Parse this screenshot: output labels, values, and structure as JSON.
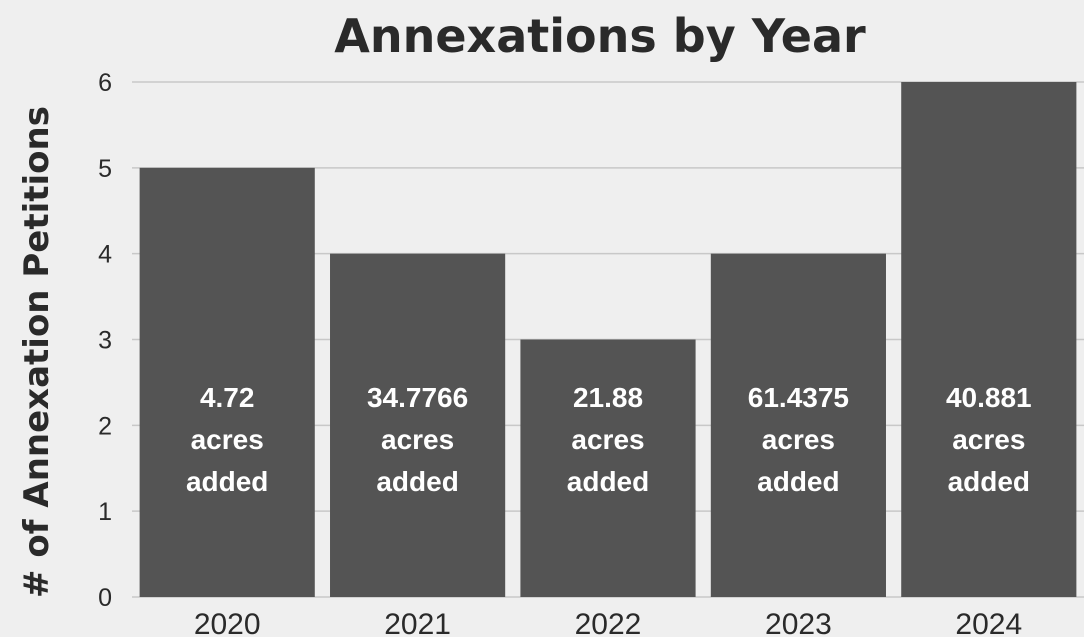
{
  "chart_data": {
    "type": "bar",
    "title": "Annexations by Year",
    "xlabel": "",
    "ylabel": "# of Annexation Petitions",
    "categories": [
      "2020",
      "2021",
      "2022",
      "2023",
      "2024"
    ],
    "values": [
      5,
      4,
      3,
      4,
      6
    ],
    "data_labels": [
      [
        "4.72",
        "acres",
        "added"
      ],
      [
        "34.7766",
        "acres",
        "added"
      ],
      [
        "21.88",
        "acres",
        "added"
      ],
      [
        "61.4375",
        "acres",
        "added"
      ],
      [
        "40.881",
        "acres",
        "added"
      ]
    ],
    "yticks": [
      "0",
      "1",
      "2",
      "3",
      "4",
      "5",
      "6"
    ],
    "ylim": [
      0,
      6
    ],
    "grid": true,
    "legend": "none",
    "colors": {
      "bar": "#545454",
      "background": "#efefef",
      "grid": "#c8c8c8",
      "text": "#2a2a2a",
      "label": "#ffffff"
    }
  }
}
